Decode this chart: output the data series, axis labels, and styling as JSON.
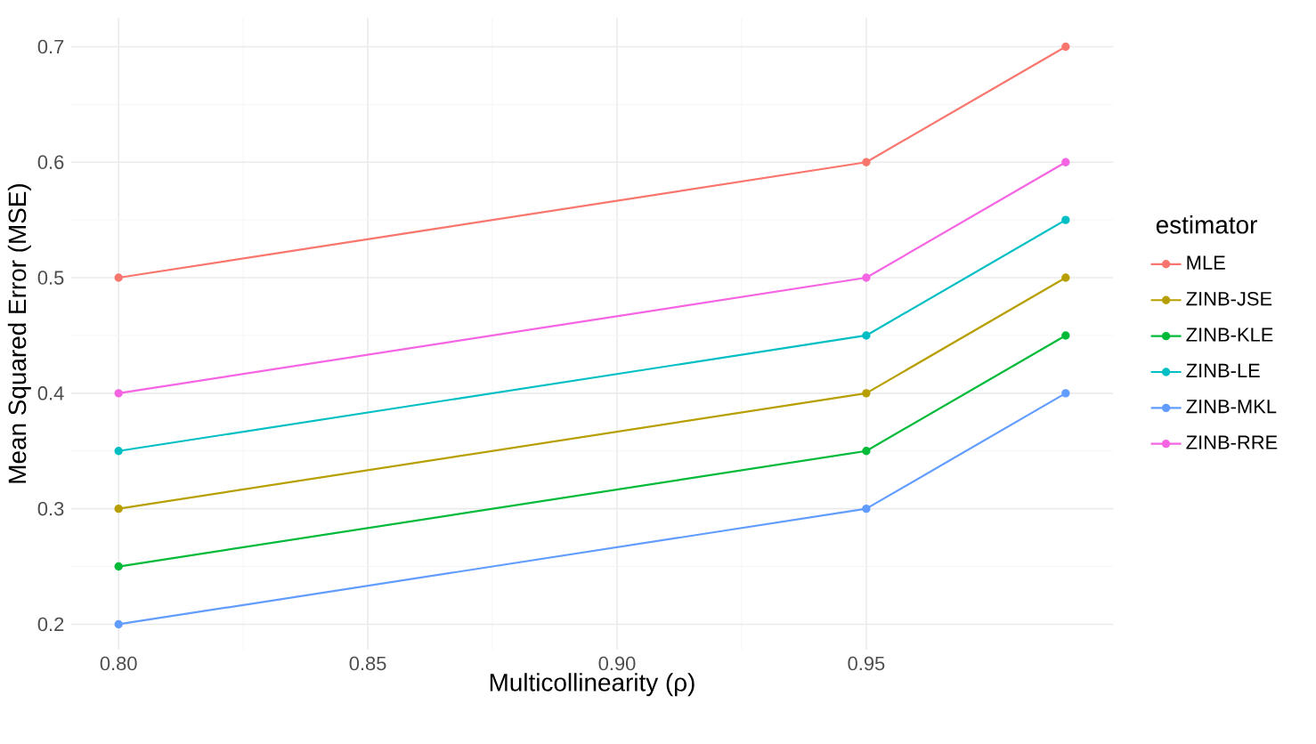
{
  "chart_data": {
    "type": "line",
    "xlabel": "Multicollinearity (ρ)",
    "ylabel": "Mean Squared Error (MSE)",
    "legend_title": "estimator",
    "x": [
      0.8,
      0.95,
      0.99
    ],
    "series": [
      {
        "name": "MLE",
        "color": "#f8766d",
        "values": [
          0.5,
          0.6,
          0.7
        ]
      },
      {
        "name": "ZINB-JSE",
        "color": "#b79f00",
        "values": [
          0.3,
          0.4,
          0.5
        ]
      },
      {
        "name": "ZINB-KLE",
        "color": "#00ba38",
        "values": [
          0.25,
          0.35,
          0.45
        ]
      },
      {
        "name": "ZINB-LE",
        "color": "#00bfc4",
        "values": [
          0.35,
          0.45,
          0.55
        ]
      },
      {
        "name": "ZINB-MKL",
        "color": "#619cff",
        "values": [
          0.2,
          0.3,
          0.4
        ]
      },
      {
        "name": "ZINB-RRE",
        "color": "#f564e3",
        "values": [
          0.4,
          0.5,
          0.6
        ]
      }
    ],
    "xlim": [
      0.7905,
      0.9995
    ],
    "ylim": [
      0.178,
      0.725
    ],
    "xticks": [
      {
        "value": 0.8,
        "label": "0.80"
      },
      0.85,
      {
        "value": 0.9,
        "label": "0.90"
      },
      0.95
    ],
    "yticks": [
      0.2,
      0.3,
      0.4,
      0.5,
      0.6,
      0.7
    ],
    "grid": true,
    "legend": "right",
    "marker": "circle",
    "line_style": "solid"
  }
}
